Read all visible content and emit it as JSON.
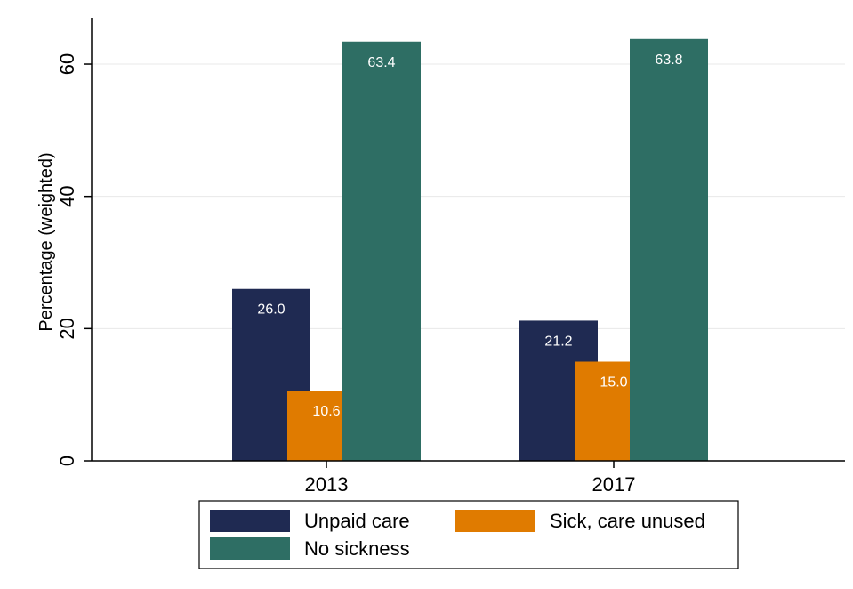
{
  "chart_data": {
    "type": "bar",
    "categories": [
      "2013",
      "2017"
    ],
    "series": [
      {
        "name": "Unpaid care",
        "values": [
          26.0,
          21.2
        ],
        "labels": [
          "26.0",
          "21.2"
        ],
        "color": "#1f2a52"
      },
      {
        "name": "Sick, care unused",
        "values": [
          10.6,
          15.0
        ],
        "labels": [
          "10.6",
          "15.0"
        ],
        "color": "#e07b00"
      },
      {
        "name": "No sickness",
        "values": [
          63.4,
          63.8
        ],
        "labels": [
          "63.4",
          "63.8"
        ],
        "color": "#2e6e64"
      }
    ],
    "title": "",
    "xlabel": "",
    "ylabel": "Percentage (weighted)",
    "ylim": [
      0,
      67
    ],
    "yticks": [
      0,
      20,
      40,
      60
    ],
    "grid": true,
    "legend_position": "bottom"
  }
}
